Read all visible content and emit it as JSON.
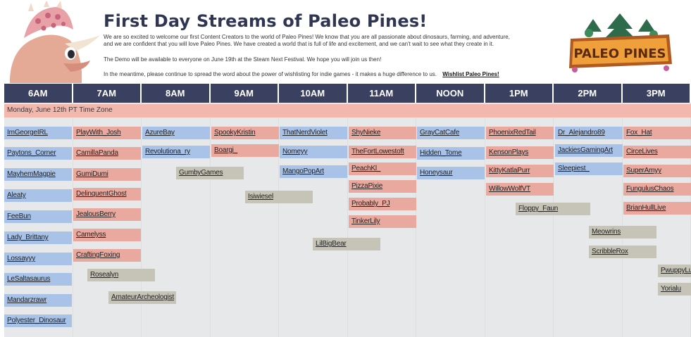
{
  "header": {
    "title": "First Day Streams of Paleo Pines!",
    "paragraph1_line1": "We are so excited to welcome our first Content Creators to the world of Paleo Pines!   We know that you are all passionate about dinosaurs, farming, and adventure,",
    "paragraph1_line2": "and we are confident that you will love Paleo Pines. We have created a world that is full of life and excitement, and we can't wait to see what they create in it.",
    "paragraph2": "The Demo will be available to everyone on June 19th at the Steam Next Festival. We hope you will join us then!",
    "paragraph3": "In the meantime, please continue to spread the word about the power of wishlisting for indie games - it makes a huge difference to us.",
    "wishlist_link": "Wishlist Paleo Pines!",
    "logo_text": "PALEO PINES"
  },
  "colors": {
    "header_bg": "#3a4060",
    "day_bar": "#f2b8ad",
    "blue": "#a9c3e8",
    "pink": "#eaa99f",
    "gray": "#c5c4b6"
  },
  "schedule": {
    "hours": [
      "6AM",
      "7AM",
      "8AM",
      "9AM",
      "10AM",
      "11AM",
      "NOON",
      "1PM",
      "2PM",
      "3PM"
    ],
    "day_label": "Monday, June 12th PT Time Zone",
    "streams": [
      {
        "name": "ImGeorgeIRL",
        "color": "blue"
      },
      {
        "name": "Paytons_Corner",
        "color": "blue"
      },
      {
        "name": "MayhemMagpie",
        "color": "blue"
      },
      {
        "name": "Aleaty",
        "color": "blue"
      },
      {
        "name": "FeeBun",
        "color": "blue"
      },
      {
        "name": "Lady_Brittany",
        "color": "blue"
      },
      {
        "name": "Lossayyy",
        "color": "blue"
      },
      {
        "name": "LeSaltasaurus",
        "color": "blue"
      },
      {
        "name": "Mandarzrawr",
        "color": "blue"
      },
      {
        "name": "Polyester_Dinosaur",
        "color": "blue"
      },
      {
        "name": "PlayWith_Josh",
        "color": "pink"
      },
      {
        "name": "CamillaPanda",
        "color": "pink"
      },
      {
        "name": "GumiDumi",
        "color": "pink"
      },
      {
        "name": "DelinquentGhost",
        "color": "pink"
      },
      {
        "name": "JealousBerry",
        "color": "pink"
      },
      {
        "name": "Camelyss",
        "color": "pink"
      },
      {
        "name": "CraftingFoxing",
        "color": "pink"
      },
      {
        "name": "Rosealyn",
        "color": "gray"
      },
      {
        "name": "AmateurArcheologist",
        "color": "gray"
      },
      {
        "name": "AzureBay",
        "color": "blue"
      },
      {
        "name": "Revolutiona_ry",
        "color": "blue"
      },
      {
        "name": "GumbyGames",
        "color": "gray"
      },
      {
        "name": "SpookyKristin",
        "color": "pink"
      },
      {
        "name": "Boargi_",
        "color": "pink"
      },
      {
        "name": "Isiwiesel",
        "color": "gray"
      },
      {
        "name": "ThatNerdViolet",
        "color": "blue"
      },
      {
        "name": "Nomeyy",
        "color": "blue"
      },
      {
        "name": "MangoPopArt",
        "color": "blue"
      },
      {
        "name": "LilBigBear",
        "color": "gray"
      },
      {
        "name": "ShyNieke",
        "color": "pink"
      },
      {
        "name": "TheFortLowestoft",
        "color": "pink"
      },
      {
        "name": "PeachKl_",
        "color": "pink"
      },
      {
        "name": "PizzaPixie",
        "color": "pink"
      },
      {
        "name": "Probably_PJ",
        "color": "pink"
      },
      {
        "name": "TinkerLily",
        "color": "pink"
      },
      {
        "name": "GrayCatCafe",
        "color": "blue"
      },
      {
        "name": "Hidden_Tome",
        "color": "blue"
      },
      {
        "name": "Honeysaur",
        "color": "blue"
      },
      {
        "name": "PhoenixRedTail",
        "color": "pink"
      },
      {
        "name": "KensonPlays",
        "color": "pink"
      },
      {
        "name": "KittyKatlaPurr",
        "color": "pink"
      },
      {
        "name": "WillowWolfVT",
        "color": "pink"
      },
      {
        "name": "Floppy_Faun",
        "color": "gray"
      },
      {
        "name": "Dr_Alejandro89",
        "color": "blue"
      },
      {
        "name": "JackiesGamingArt",
        "color": "blue"
      },
      {
        "name": "Sleepiest_",
        "color": "blue"
      },
      {
        "name": "Meowrins",
        "color": "gray"
      },
      {
        "name": "ScribbleRox",
        "color": "gray"
      },
      {
        "name": "Fox_Hat",
        "color": "pink"
      },
      {
        "name": "CirceLives",
        "color": "pink"
      },
      {
        "name": "SuperAmyy",
        "color": "pink"
      },
      {
        "name": "FungulusChaos",
        "color": "pink"
      },
      {
        "name": "BrianHullLive",
        "color": "pink"
      },
      {
        "name": "PwuppyLuv",
        "color": "gray"
      },
      {
        "name": "Yorialu",
        "color": "gray"
      }
    ]
  }
}
